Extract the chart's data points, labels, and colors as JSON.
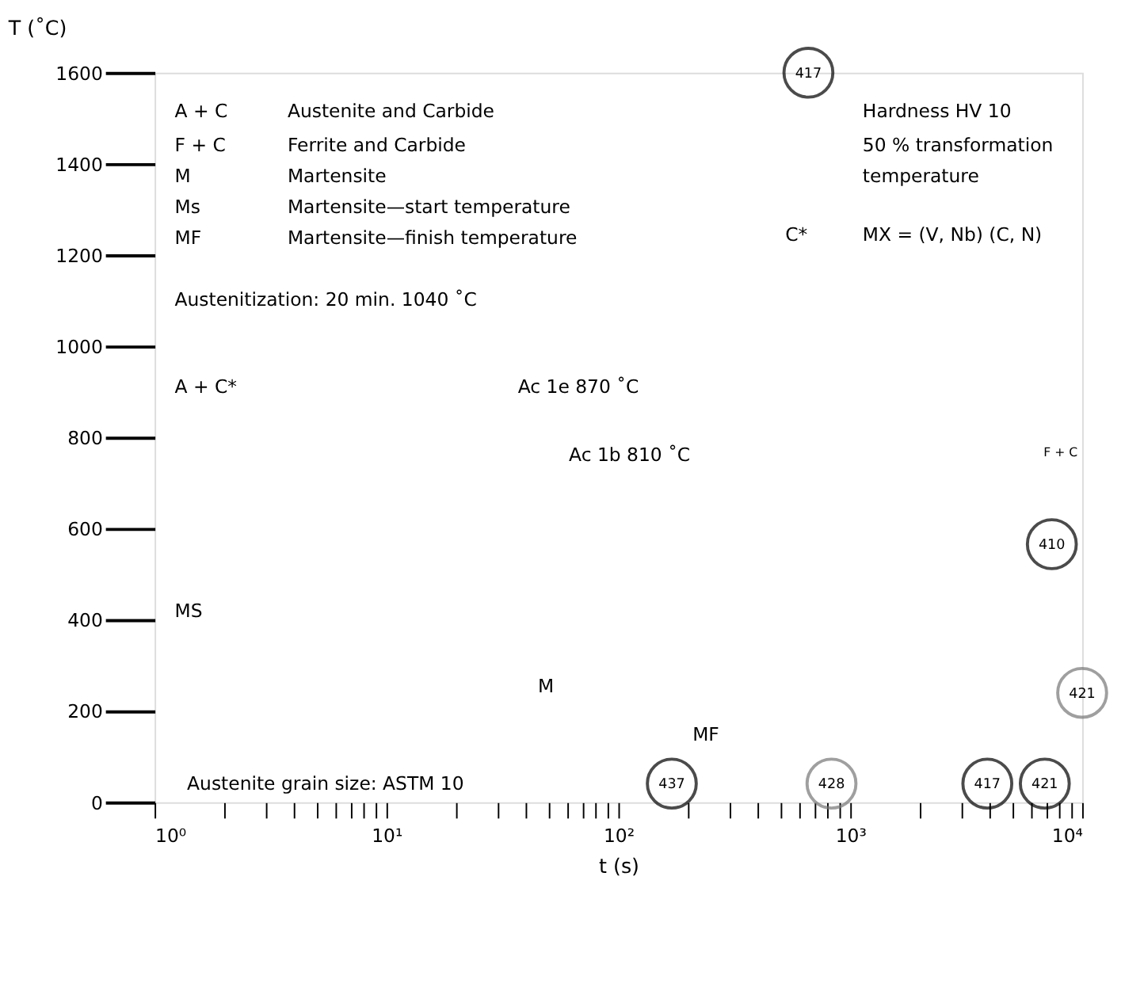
{
  "chart_data": {
    "type": "scatter",
    "xlabel": "t (s)",
    "ylabel": "T (˚C)",
    "log": "x",
    "marker": "circle",
    "grid": false,
    "xlim": [
      1,
      10000
    ],
    "ylim": [
      0,
      1600
    ],
    "xticks": [
      {
        "value": 1,
        "label": "10⁰"
      },
      {
        "value": 2,
        "label": null
      },
      {
        "value": 3,
        "label": null
      },
      {
        "value": 4,
        "label": null
      },
      {
        "value": 5,
        "label": null
      },
      {
        "value": 6,
        "label": null
      },
      {
        "value": 7,
        "label": null
      },
      {
        "value": 8,
        "label": null
      },
      {
        "value": 9,
        "label": null
      },
      {
        "value": 10,
        "label": "10¹"
      },
      {
        "value": 20,
        "label": null
      },
      {
        "value": 30,
        "label": null
      },
      {
        "value": 40,
        "label": null
      },
      {
        "value": 50,
        "label": null
      },
      {
        "value": 60,
        "label": null
      },
      {
        "value": 70,
        "label": null
      },
      {
        "value": 80,
        "label": null
      },
      {
        "value": 90,
        "label": null
      },
      {
        "value": 100,
        "label": "10²"
      },
      {
        "value": 200,
        "label": null
      },
      {
        "value": 300,
        "label": null
      },
      {
        "value": 400,
        "label": null
      },
      {
        "value": 500,
        "label": null
      },
      {
        "value": 600,
        "label": null
      },
      {
        "value": 700,
        "label": null
      },
      {
        "value": 800,
        "label": null
      },
      {
        "value": 900,
        "label": null
      },
      {
        "value": 1000,
        "label": "10³"
      },
      {
        "value": 2000,
        "label": null
      },
      {
        "value": 3000,
        "label": null
      },
      {
        "value": 4000,
        "label": null
      },
      {
        "value": 5000,
        "label": null
      },
      {
        "value": 6000,
        "label": null
      },
      {
        "value": 7000,
        "label": null
      },
      {
        "value": 8000,
        "label": null
      },
      {
        "value": 9000,
        "label": null
      },
      {
        "value": 10000,
        "label": "10⁴"
      }
    ],
    "yticks": [
      0,
      200,
      400,
      600,
      800,
      1000,
      1200,
      1400,
      1600
    ],
    "x": [
      660,
      7400,
      10000,
      170,
      830,
      3900,
      6900
    ],
    "values": [
      1600,
      566,
      240,
      41,
      41,
      41,
      41
    ],
    "colors": [
      "#000000",
      "#000000",
      "#777777",
      "#000000",
      "#777777",
      "#000000",
      "#000000"
    ],
    "annotations": [
      "A + C",
      "Austenite and Carbide",
      "F + C",
      "Ferrite and Carbide",
      "M",
      "Martensite",
      "Ms",
      "Martensite—start temperature",
      "MF",
      "Martensite—finish temperature",
      "Austenitization: 20 min. 1040 ˚C",
      "A + C*",
      "Ac 1e 870 ˚C",
      "Ac 1b 810 ˚C",
      "F + C",
      "MS",
      "M",
      "MF",
      "Austenite grain size: ASTM 10",
      "Hardness HV 10",
      "50 % transformation",
      "temperature",
      "C*",
      "MX = (V, Nb) (C, N)",
      {
        "text": "417",
        "x": 660,
        "y": 1600
      },
      {
        "text": "410",
        "x": 7400,
        "y": 566
      },
      {
        "text": "421",
        "x": 10000,
        "y": 240
      },
      {
        "text": "437",
        "x": 170,
        "y": 41
      },
      {
        "text": "428",
        "x": 830,
        "y": 41
      },
      {
        "text": "417",
        "x": 3900,
        "y": 41
      },
      {
        "text": "421",
        "x": 6900,
        "y": 41
      }
    ]
  }
}
